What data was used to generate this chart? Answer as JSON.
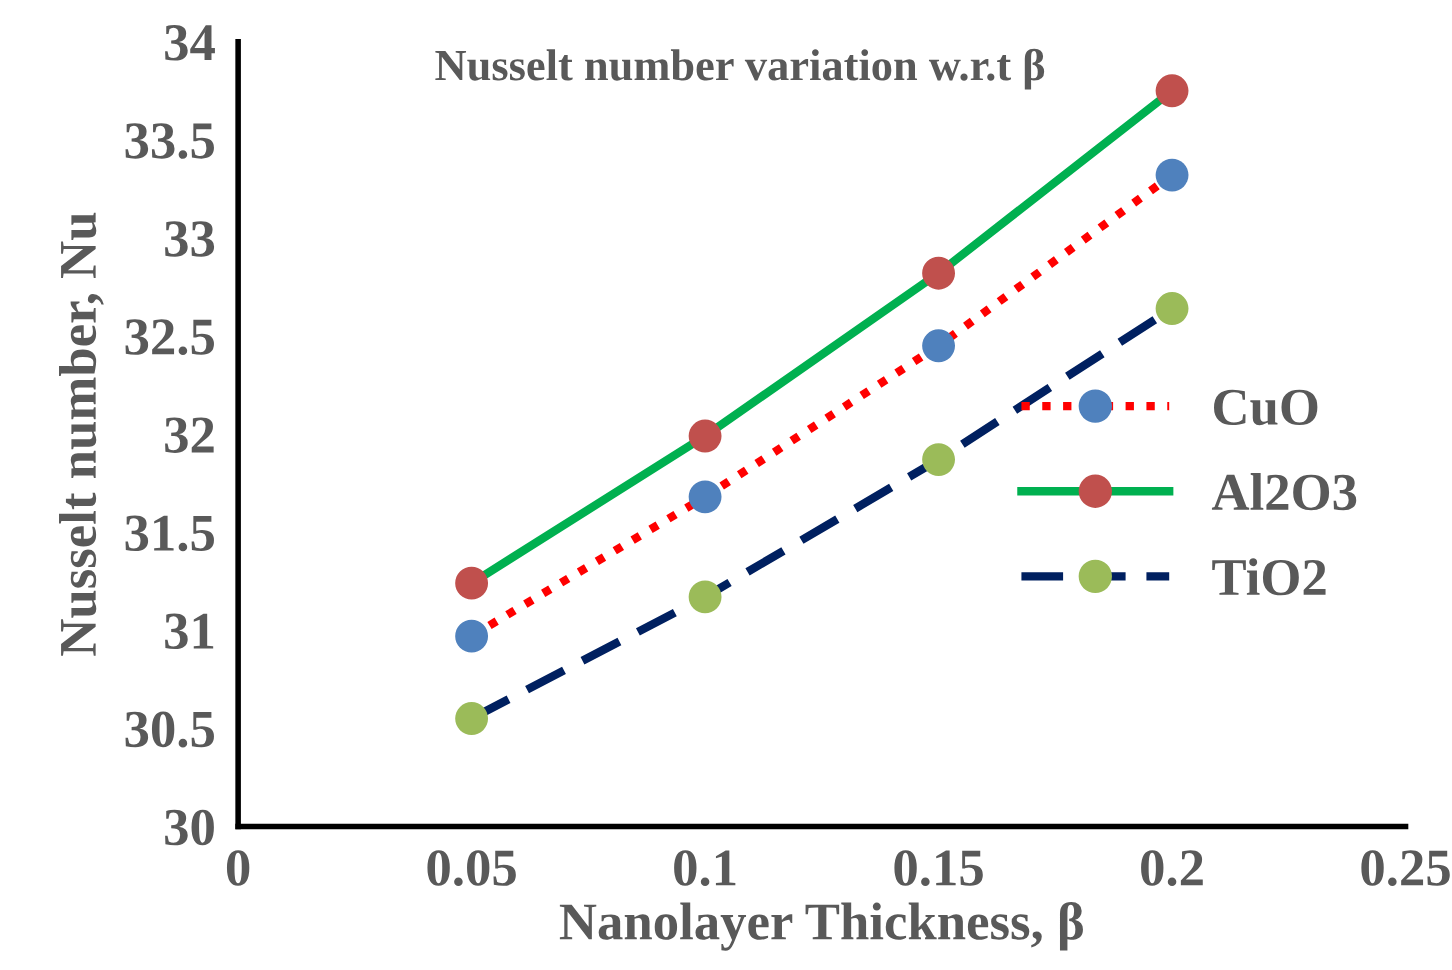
{
  "chart_data": {
    "type": "line",
    "title": "Nusselt number variation w.r.t β",
    "xlabel": "Nanolayer Thickness, β",
    "ylabel": "Nusselt number, Nu",
    "x": [
      0.05,
      0.1,
      0.15,
      0.2
    ],
    "series": [
      {
        "name": "CuO",
        "color": "#ff0000",
        "line_style": "dotted",
        "colors": [
          "#4f81bd",
          "#4f81bd",
          "#4f81bd",
          "#4f81bd"
        ],
        "values": [
          30.97,
          31.68,
          32.45,
          33.32
        ]
      },
      {
        "name": "Al2O3",
        "color": "#00b050",
        "line_style": "solid",
        "colors": [
          "#c0504d",
          "#c0504d",
          "#c0504d",
          "#c0504d"
        ],
        "values": [
          31.24,
          31.99,
          32.82,
          33.75
        ]
      },
      {
        "name": "TiO2",
        "color": "#002060",
        "line_style": "dashed",
        "colors": [
          "#9bbb59",
          "#9bbb59",
          "#9bbb59",
          "#9bbb59"
        ],
        "values": [
          30.55,
          31.17,
          31.87,
          32.64
        ]
      }
    ],
    "marker": "circle",
    "xlim": [
      0,
      0.25
    ],
    "xticks": [
      0,
      0.05,
      0.1,
      0.15,
      0.2,
      0.25
    ],
    "ylim": [
      30,
      34
    ],
    "yticks": [
      30,
      30.5,
      31,
      31.5,
      32,
      32.5,
      33,
      33.5,
      34
    ],
    "grid": false,
    "legend": "right"
  }
}
